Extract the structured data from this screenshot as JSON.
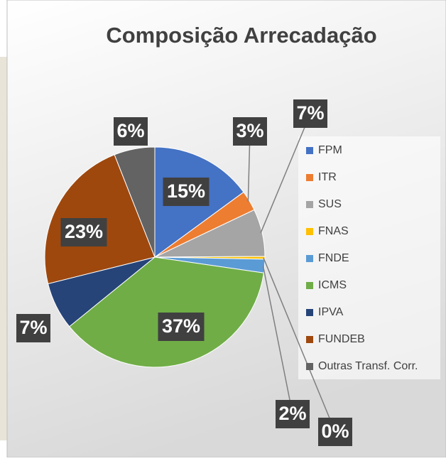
{
  "chart_data": {
    "type": "pie",
    "title": "Composição Arrecadação",
    "categories": [
      "FPM",
      "ITR",
      "SUS",
      "FNAS",
      "FNDE",
      "ICMS",
      "IPVA",
      "FUNDEB",
      "Outras Transf. Corr."
    ],
    "values": [
      15,
      3,
      7,
      0.4,
      2,
      37,
      7,
      23,
      6
    ],
    "value_labels": [
      "15%",
      "3%",
      "7%",
      "0%",
      "2%",
      "37%",
      "7%",
      "23%",
      "6%"
    ],
    "colors": [
      "#4472c4",
      "#ed7d31",
      "#a5a5a5",
      "#ffc000",
      "#5b9bd5",
      "#70ad47",
      "#264478",
      "#9e480e",
      "#636363"
    ],
    "legend": "right"
  }
}
